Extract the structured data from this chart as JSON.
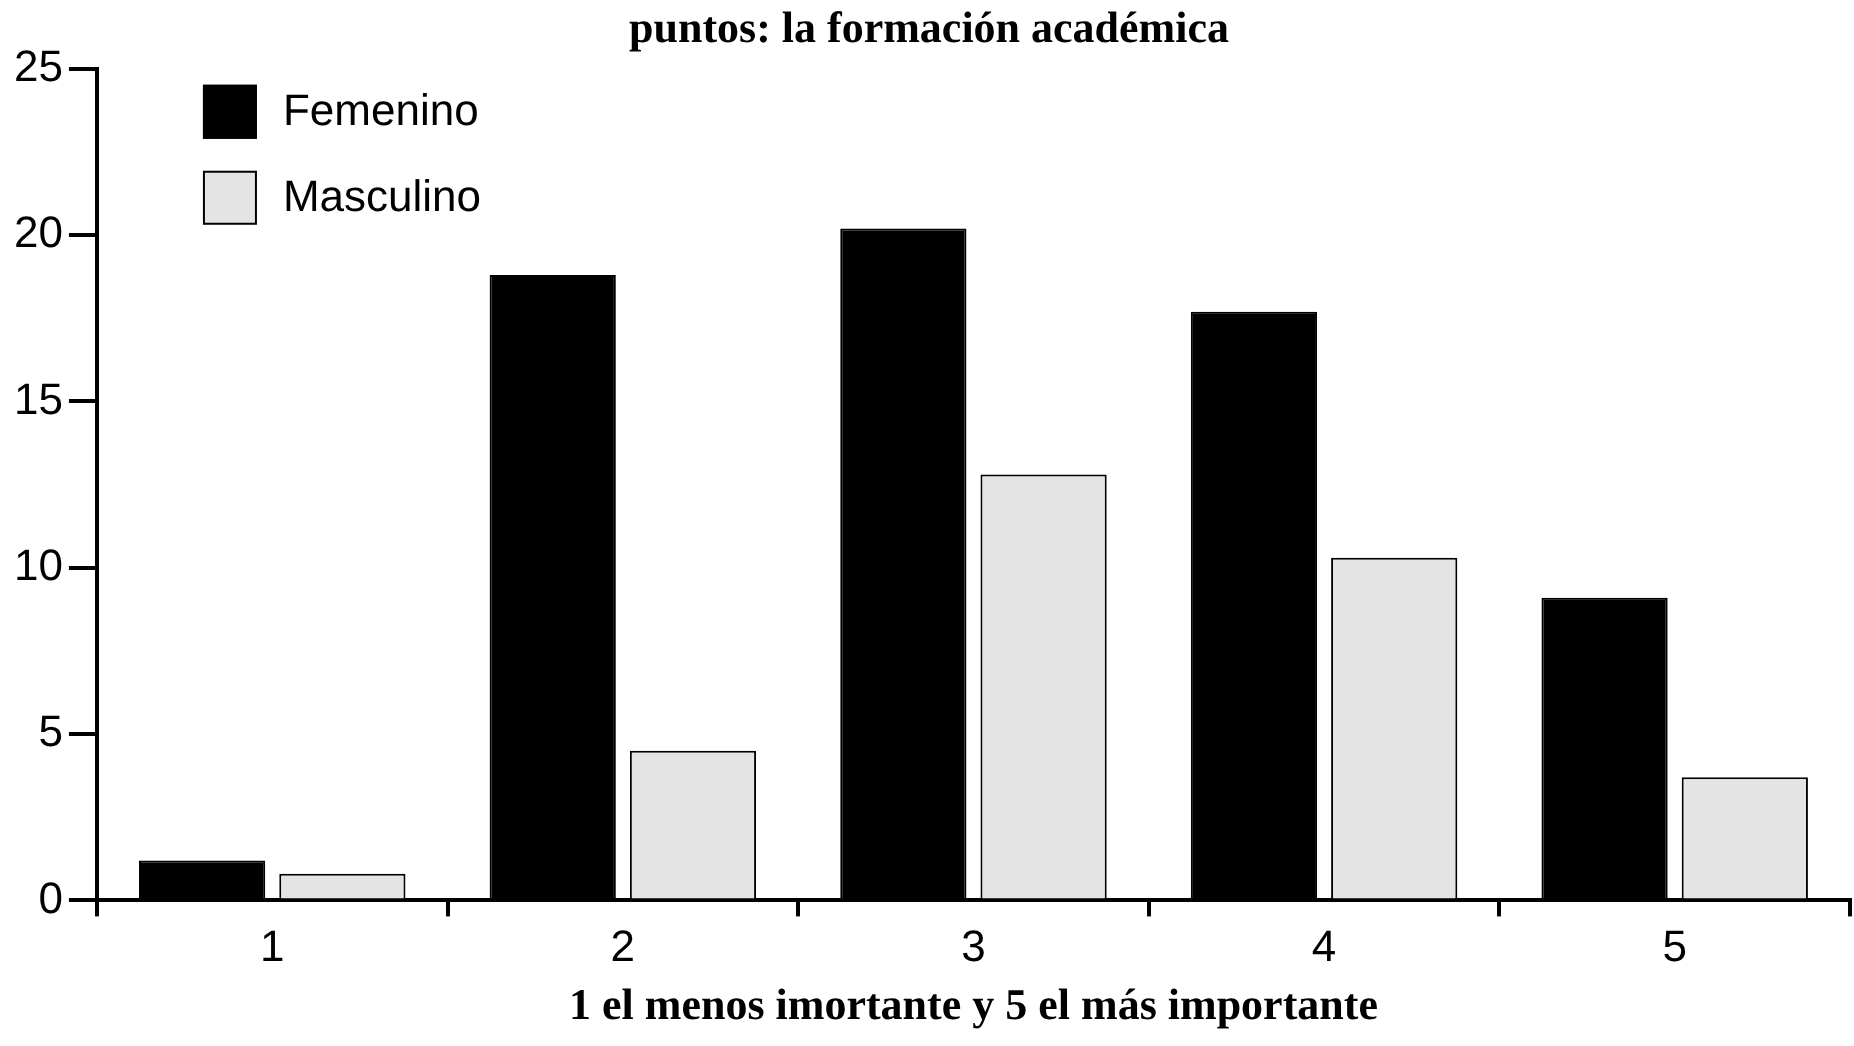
{
  "chart_data": {
    "type": "bar",
    "title": "puntos: la formación académica",
    "xlabel": "1 el menos imortante y 5 el más importante",
    "categories": [
      "1",
      "2",
      "3",
      "4",
      "5"
    ],
    "series": [
      {
        "name": "Femenino",
        "color": "#000000",
        "values": [
          1.2,
          18.8,
          20.2,
          17.7,
          9.1
        ]
      },
      {
        "name": "Masculino",
        "color": "#e4e4e4",
        "values": [
          0.8,
          4.5,
          12.8,
          10.3,
          3.7
        ]
      }
    ],
    "ylim": [
      0,
      25
    ],
    "yticks": [
      0,
      5,
      10,
      15,
      20,
      25
    ],
    "grid": false,
    "legend": "top left"
  }
}
